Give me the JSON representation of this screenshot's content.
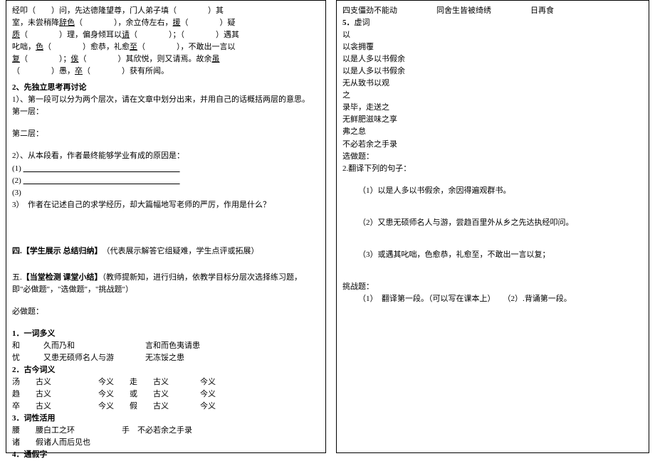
{
  "left": {
    "p1_l1": "经叩（　　）问，先达德隆望尊，门人弟子填（　　　　）其",
    "p1_l2_a": "室，未尝稍降",
    "p1_l2_b": "辞色",
    "p1_l2_c": "（　　　　），余立侍左右，",
    "p1_l2_d": "援",
    "p1_l2_e": "（　　　　）疑",
    "p1_l3_a": "质",
    "p1_l3_b": "（　　　　）理，偏身倾耳以",
    "p1_l3_c": "请",
    "p1_l3_d": "（　　　　）；（　　　　）遇其",
    "p1_l4_a": "叱咄，",
    "p1_l4_b": "色",
    "p1_l4_c": "（　　　　）愈恭，礼愈",
    "p1_l4_d": "至",
    "p1_l4_e": "（　　　　），不敢出一言以",
    "p1_l5_a": "复",
    "p1_l5_b": "（　　　　）；",
    "p1_l5_c": "俟",
    "p1_l5_d": "（　　　　）其欣悦，则又请焉。故余",
    "p1_l5_e": "虽",
    "p1_l6_a": "（　　　　）愚，",
    "p1_l6_b": "卒",
    "p1_l6_c": "（　　　　）获有所闻。",
    "h2": "2、先独立思考再讨论",
    "q1": "1）、第一段可以分为两个层次，请在文章中划分出来，并用自己的话概括两层的意思。",
    "layer1": "第一层：",
    "layer2": "第二层：",
    "q2": "2）、从本段看，作者最终能够学业有成的原因是：",
    "q2_1": "(1)",
    "q2_2": "(2)",
    "q2_3": "(3)",
    "q3": "3）　作者在记述自己的求学经历，却大篇幅地写老师的严厉，作用是什么？",
    "h4_a": "四.【学生展示  总结归纳】",
    "h4_b": "　（代表展示解答它组疑难，学生点评或拓展）",
    "h5_a": "五.",
    "h5_b": "【当堂检测  课堂小结】",
    "h5_c": "（教师提新知，进行归纳，依教学目标分层次选择练习题，即\"必做题\"，\"选做题\"，\"挑战题\"）",
    "must": "必做题：",
    "t1": "1．一词多义",
    "t1_l1": "和　　　久而乃和　　　　　　　　　言和而色夷请患",
    "t1_l2": "忧　　　又患无硕师名人与游　　　　无冻馁之患",
    "t2": "2．古今词义",
    "t2_l1": "汤　　古义　　　　　　今义　　走　　古义　　　　今义",
    "t2_l2": "趋　　古义　　　　　　今义　　或　　古义　　　　今义",
    "t2_l3": "卒　　古义　　　　　　今义　　假　　古义　　　　今义",
    "t3": "3．词性活用",
    "t3_l1": "腰　　腰白工之环　　　　　　手　不必若余之手录",
    "t3_l2": "诸　　假诸人而后见也",
    "t4": "4．通假字"
  },
  "right": {
    "r1": "四支僵劲不能动　　　　　同舍生皆被绮绣　　　　　日再食",
    "r2a": "5．",
    "r2b": "虚词",
    "r3": "以",
    "r4": "以衾拥覆",
    "r5": "以是人多以书假余",
    "r6": "以是人多以书假余",
    "r7": "无从致书以观",
    "r8": "之",
    "r9": "录毕，走送之",
    "r10": "无鲜肥滋味之享",
    "r11": "弗之怠",
    "r12": "不必若余之手录",
    "r13": "选做题：",
    "r14": "2.翻译下列的句子：",
    "r_s1": "（1）以是人多以书假余，余因得遍观群书。",
    "r_s2": "（2）又患无硕师名人与游，尝趋百里外从乡之先达执经叩问。",
    "r_s3": "（3）或遇其叱咄，色愈恭，礼愈至，不敢出一言以复；",
    "r_ch": "挑战题：",
    "r_ch1": "（1）　翻译第一段。（可以写在课本上）　　（2）.背诵第一段。"
  }
}
